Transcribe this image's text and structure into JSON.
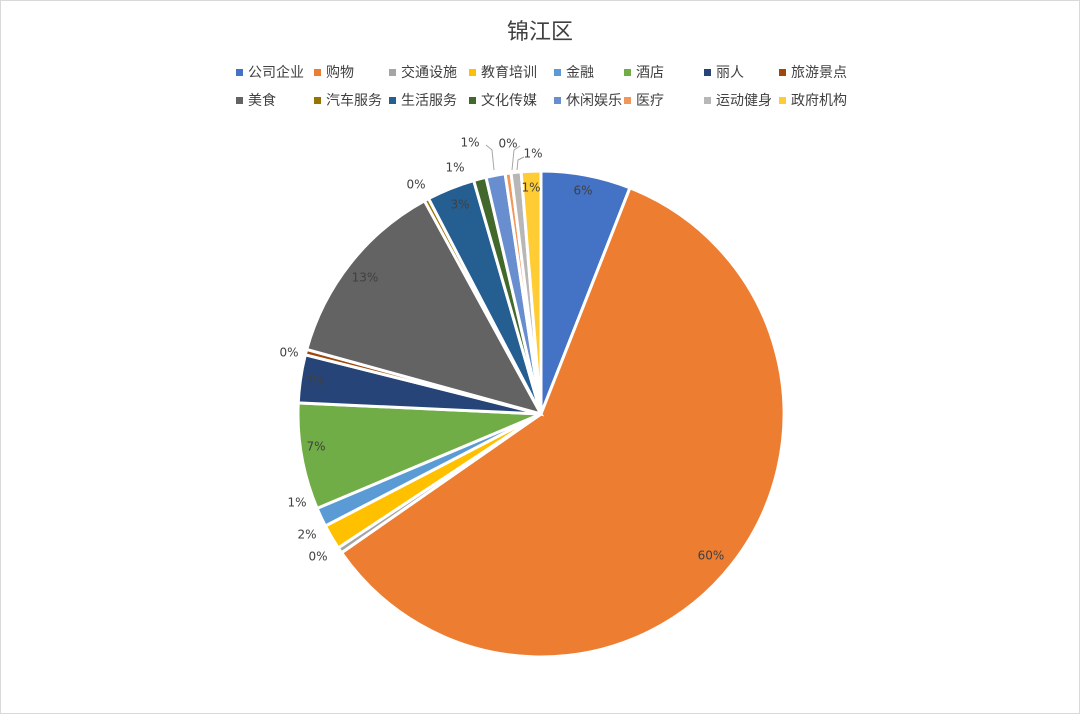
{
  "chart_data": {
    "type": "pie",
    "title": "锦江区",
    "legend_position": "top",
    "slices": [
      {
        "name": "公司企业",
        "value": 6,
        "label": "6%",
        "color": "#4472C4"
      },
      {
        "name": "购物",
        "value": 60,
        "label": "60%",
        "color": "#ED7D31"
      },
      {
        "name": "交通设施",
        "value": 0,
        "label": "0%",
        "color": "#A5A5A5"
      },
      {
        "name": "教育培训",
        "value": 2,
        "label": "2%",
        "color": "#FFC000"
      },
      {
        "name": "金融",
        "value": 1,
        "label": "1%",
        "color": "#5B9BD5"
      },
      {
        "name": "酒店",
        "value": 7,
        "label": "7%",
        "color": "#70AD47"
      },
      {
        "name": "丽人",
        "value": 3,
        "label": "3%",
        "color": "#264478"
      },
      {
        "name": "旅游景点",
        "value": 0,
        "label": "0%",
        "color": "#9E480E"
      },
      {
        "name": "美食",
        "value": 13,
        "label": "13%",
        "color": "#636363"
      },
      {
        "name": "汽车服务",
        "value": 0,
        "label": "0%",
        "color": "#997300"
      },
      {
        "name": "生活服务",
        "value": 3,
        "label": "3%",
        "color": "#255E91"
      },
      {
        "name": "文化传媒",
        "value": 1,
        "label": "1%",
        "color": "#43682B"
      },
      {
        "name": "休闲娱乐",
        "value": 1,
        "label": "1%",
        "color": "#698ED0"
      },
      {
        "name": "医疗",
        "value": 0,
        "label": "0%",
        "color": "#F1975A"
      },
      {
        "name": "运动健身",
        "value": 1,
        "label": "1%",
        "color": "#B7B7B7"
      },
      {
        "name": "政府机构",
        "value": 1,
        "label": "1%",
        "color": "#FFCD33"
      }
    ]
  }
}
